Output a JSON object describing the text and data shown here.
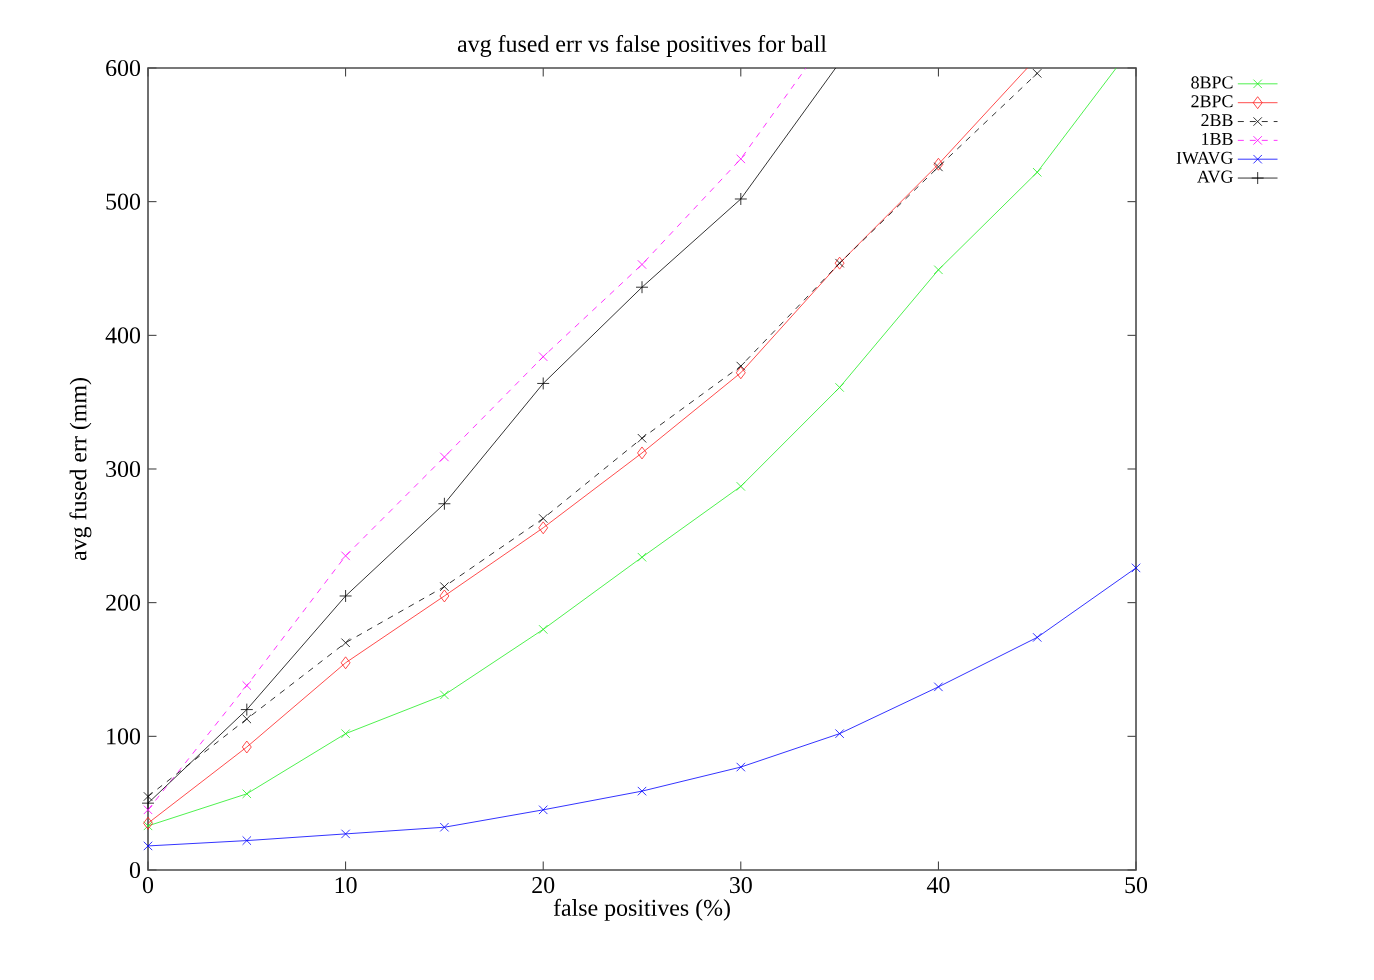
{
  "chart_data": {
    "type": "line",
    "title": "avg fused err vs false positives for ball",
    "xlabel": "false positives (%)",
    "ylabel": "avg fused err (mm)",
    "xlim": [
      0,
      50
    ],
    "ylim": [
      0,
      600
    ],
    "xticks": [
      0,
      10,
      20,
      30,
      40,
      50
    ],
    "yticks": [
      0,
      100,
      200,
      300,
      400,
      500,
      600
    ],
    "grid": false,
    "legend": "right",
    "series": [
      {
        "name": "8BPC",
        "color": "#22ee22",
        "marker": "cross",
        "line_style": "solid",
        "x": [
          0,
          5,
          10,
          15,
          20,
          25,
          30,
          35,
          40,
          45,
          49
        ],
        "values": [
          33,
          57,
          102,
          131,
          180,
          234,
          287,
          361,
          449,
          522,
          600
        ]
      },
      {
        "name": "2BPC",
        "color": "#ff2020",
        "marker": "diamond",
        "line_style": "solid",
        "x": [
          0,
          5,
          10,
          15,
          20,
          25,
          30,
          35,
          40,
          44.5
        ],
        "values": [
          35,
          92,
          155,
          205,
          256,
          312,
          372,
          454,
          528,
          600
        ]
      },
      {
        "name": "2BB",
        "color": "#000000",
        "marker": "cross",
        "line_style": "dashed",
        "x": [
          0,
          5,
          10,
          15,
          20,
          25,
          30,
          35,
          40,
          45
        ],
        "values": [
          55,
          113,
          170,
          212,
          263,
          323,
          377,
          454,
          526,
          596
        ]
      },
      {
        "name": "1BB",
        "color": "#ff00ff",
        "marker": "cross",
        "line_style": "dashed",
        "x": [
          0,
          5,
          10,
          15,
          20,
          25,
          30,
          33.3
        ],
        "values": [
          45,
          138,
          235,
          309,
          384,
          453,
          532,
          600
        ]
      },
      {
        "name": "IWAVG",
        "color": "#0000ff",
        "marker": "cross",
        "line_style": "solid",
        "x": [
          0,
          5,
          10,
          15,
          20,
          25,
          30,
          35,
          40,
          45,
          50
        ],
        "values": [
          18,
          22,
          27,
          32,
          45,
          59,
          77,
          102,
          137,
          174,
          226
        ]
      },
      {
        "name": "AVG",
        "color": "#000000",
        "marker": "plus",
        "line_style": "solid",
        "x": [
          0,
          5,
          10,
          15,
          20,
          25,
          30,
          34.8
        ],
        "values": [
          50,
          120,
          205,
          274,
          364,
          436,
          502,
          600
        ]
      }
    ]
  }
}
